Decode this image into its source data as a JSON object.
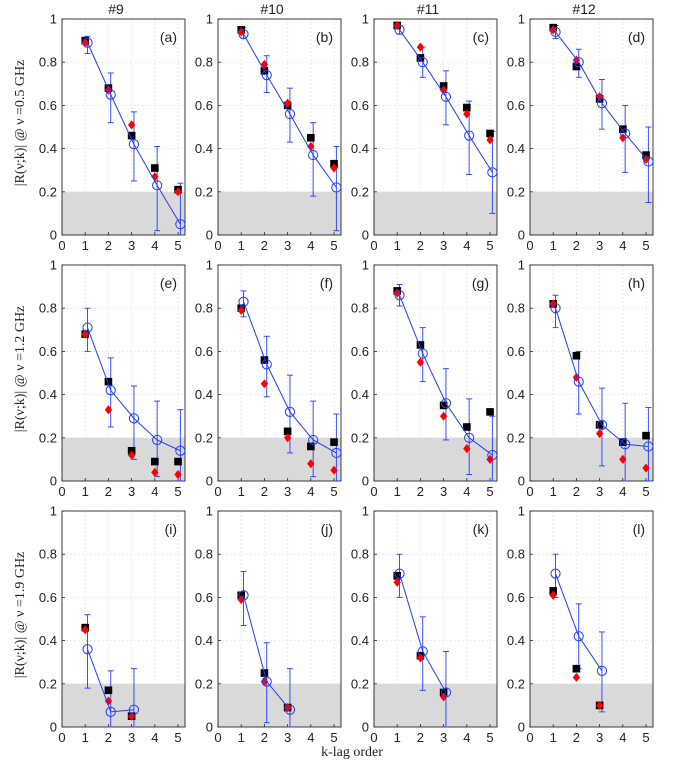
{
  "column_titles": [
    "#9",
    "#10",
    "#11",
    "#12"
  ],
  "row_ylabels": [
    "|R(ν;k)| @ ν =0.5 GHz",
    "|R(ν;k)| @ ν =1.2 GHz",
    "|R(ν;k)| @ ν =1.9 GHz"
  ],
  "xlabel": "k-lag order",
  "x_ticks": [
    "0",
    "1",
    "2",
    "3",
    "4",
    "5"
  ],
  "y_ticks": [
    "0",
    "0.2",
    "0.4",
    "0.6",
    "0.8",
    "1"
  ],
  "colors": {
    "black_squares": "#000000",
    "red_diamonds": "#ff0000",
    "blue_circles_line": "#1f3cff",
    "shaded_band": "#d9d9d9"
  },
  "chart_data": [
    {
      "type": "scatter",
      "panel_label": "(a)",
      "column": "#9",
      "xlim": [
        0,
        5.3
      ],
      "ylim": [
        0,
        1
      ],
      "grid": true,
      "shaded_band": [
        0,
        0.2
      ],
      "series": [
        {
          "marker": "square",
          "color": "black",
          "x": [
            1,
            2,
            3,
            4,
            5
          ],
          "y": [
            0.9,
            0.68,
            0.46,
            0.31,
            0.21
          ]
        },
        {
          "marker": "diamond",
          "color": "red",
          "x": [
            1,
            2,
            3,
            4,
            5
          ],
          "y": [
            0.89,
            0.67,
            0.51,
            0.27,
            0.2
          ]
        },
        {
          "marker": "open-circle-line",
          "color": "blue",
          "x": [
            1.1,
            2.1,
            3.1,
            4.1,
            5.1
          ],
          "y": [
            0.89,
            0.65,
            0.42,
            0.23,
            0.05
          ],
          "err_low": [
            0.84,
            0.52,
            0.25,
            0.02,
            0
          ],
          "err_high": [
            0.92,
            0.75,
            0.57,
            0.41,
            0.24
          ]
        }
      ]
    },
    {
      "type": "scatter",
      "panel_label": "(b)",
      "column": "#10",
      "xlim": [
        0,
        5.3
      ],
      "ylim": [
        0,
        1
      ],
      "grid": true,
      "shaded_band": [
        0,
        0.2
      ],
      "series": [
        {
          "marker": "square",
          "color": "black",
          "x": [
            1,
            2,
            3,
            4,
            5
          ],
          "y": [
            0.95,
            0.76,
            0.6,
            0.45,
            0.33
          ]
        },
        {
          "marker": "diamond",
          "color": "red",
          "x": [
            1,
            2,
            3,
            4,
            5
          ],
          "y": [
            0.94,
            0.79,
            0.61,
            0.41,
            0.31
          ]
        },
        {
          "marker": "open-circle-line",
          "color": "blue",
          "x": [
            1.1,
            2.1,
            3.1,
            4.1,
            5.1
          ],
          "y": [
            0.93,
            0.74,
            0.56,
            0.37,
            0.22
          ],
          "err_low": [
            0.91,
            0.66,
            0.43,
            0.18,
            0.02
          ],
          "err_high": [
            0.96,
            0.83,
            0.68,
            0.52,
            0.41
          ]
        }
      ]
    },
    {
      "type": "scatter",
      "panel_label": "(c)",
      "column": "#11",
      "xlim": [
        0,
        5.3
      ],
      "ylim": [
        0,
        1
      ],
      "grid": true,
      "shaded_band": [
        0,
        0.2
      ],
      "series": [
        {
          "marker": "square",
          "color": "black",
          "x": [
            1,
            2,
            3,
            4,
            5
          ],
          "y": [
            0.97,
            0.82,
            0.69,
            0.59,
            0.47
          ]
        },
        {
          "marker": "diamond",
          "color": "red",
          "x": [
            1,
            2,
            3,
            4,
            5
          ],
          "y": [
            0.97,
            0.87,
            0.67,
            0.56,
            0.44
          ]
        },
        {
          "marker": "open-circle-line",
          "color": "blue",
          "x": [
            1.1,
            2.1,
            3.1,
            4.1,
            5.1
          ],
          "y": [
            0.95,
            0.8,
            0.64,
            0.46,
            0.29
          ],
          "err_low": [
            0.93,
            0.73,
            0.51,
            0.28,
            0.1
          ],
          "err_high": [
            0.97,
            0.87,
            0.76,
            0.62,
            0.48
          ]
        }
      ]
    },
    {
      "type": "scatter",
      "panel_label": "(d)",
      "column": "#12",
      "xlim": [
        0,
        5.3
      ],
      "ylim": [
        0,
        1
      ],
      "grid": true,
      "shaded_band": [
        0,
        0.2
      ],
      "series": [
        {
          "marker": "square",
          "color": "black",
          "x": [
            1,
            2,
            3,
            4,
            5
          ],
          "y": [
            0.96,
            0.78,
            0.63,
            0.49,
            0.37
          ]
        },
        {
          "marker": "diamond",
          "color": "red",
          "x": [
            1,
            2,
            3,
            4,
            5
          ],
          "y": [
            0.95,
            0.81,
            0.64,
            0.45,
            0.35
          ]
        },
        {
          "marker": "open-circle-line",
          "color": "blue",
          "x": [
            1.1,
            2.1,
            3.1,
            4.1,
            5.1
          ],
          "y": [
            0.94,
            0.8,
            0.61,
            0.47,
            0.34
          ],
          "err_low": [
            0.91,
            0.73,
            0.49,
            0.29,
            0.15
          ],
          "err_high": [
            0.97,
            0.86,
            0.72,
            0.6,
            0.5
          ]
        }
      ]
    },
    {
      "type": "scatter",
      "panel_label": "(e)",
      "column": "#9",
      "xlim": [
        0,
        5.3
      ],
      "ylim": [
        0,
        1
      ],
      "grid": true,
      "shaded_band": [
        0,
        0.2
      ],
      "series": [
        {
          "marker": "square",
          "color": "black",
          "x": [
            1,
            2,
            3,
            4,
            5
          ],
          "y": [
            0.68,
            0.46,
            0.14,
            0.09,
            0.09
          ]
        },
        {
          "marker": "diamond",
          "color": "red",
          "x": [
            1,
            2,
            3,
            4,
            5
          ],
          "y": [
            0.68,
            0.33,
            0.12,
            0.04,
            0.03
          ]
        },
        {
          "marker": "open-circle-line",
          "color": "blue",
          "x": [
            1.1,
            2.1,
            3.1,
            4.1,
            5.1
          ],
          "y": [
            0.71,
            0.42,
            0.29,
            0.19,
            0.14
          ],
          "err_low": [
            0.6,
            0.25,
            0.1,
            0.02,
            0
          ],
          "err_high": [
            0.8,
            0.57,
            0.44,
            0.37,
            0.33
          ]
        }
      ]
    },
    {
      "type": "scatter",
      "panel_label": "(f)",
      "column": "#10",
      "xlim": [
        0,
        5.3
      ],
      "ylim": [
        0,
        1
      ],
      "grid": true,
      "shaded_band": [
        0,
        0.2
      ],
      "series": [
        {
          "marker": "square",
          "color": "black",
          "x": [
            1,
            2,
            3,
            4,
            5
          ],
          "y": [
            0.8,
            0.56,
            0.23,
            0.16,
            0.18
          ]
        },
        {
          "marker": "diamond",
          "color": "red",
          "x": [
            1,
            2,
            3,
            4,
            5
          ],
          "y": [
            0.79,
            0.45,
            0.2,
            0.08,
            0.05
          ]
        },
        {
          "marker": "open-circle-line",
          "color": "blue",
          "x": [
            1.1,
            2.1,
            3.1,
            4.1,
            5.1
          ],
          "y": [
            0.83,
            0.54,
            0.32,
            0.19,
            0.13
          ],
          "err_low": [
            0.76,
            0.39,
            0.13,
            0.02,
            0
          ],
          "err_high": [
            0.88,
            0.67,
            0.49,
            0.37,
            0.31
          ]
        }
      ]
    },
    {
      "type": "scatter",
      "panel_label": "(g)",
      "column": "#11",
      "xlim": [
        0,
        5.3
      ],
      "ylim": [
        0,
        1
      ],
      "grid": true,
      "shaded_band": [
        0,
        0.2
      ],
      "series": [
        {
          "marker": "square",
          "color": "black",
          "x": [
            1,
            2,
            3,
            4,
            5
          ],
          "y": [
            0.88,
            0.63,
            0.35,
            0.25,
            0.32
          ]
        },
        {
          "marker": "diamond",
          "color": "red",
          "x": [
            1,
            2,
            3,
            4,
            5
          ],
          "y": [
            0.87,
            0.55,
            0.3,
            0.15,
            0.1
          ]
        },
        {
          "marker": "open-circle-line",
          "color": "blue",
          "x": [
            1.1,
            2.1,
            3.1,
            4.1,
            5.1
          ],
          "y": [
            0.86,
            0.59,
            0.36,
            0.2,
            0.12
          ],
          "err_low": [
            0.81,
            0.46,
            0.19,
            0.03,
            0
          ],
          "err_high": [
            0.91,
            0.71,
            0.52,
            0.38,
            0.3
          ]
        }
      ]
    },
    {
      "type": "scatter",
      "panel_label": "(h)",
      "column": "#12",
      "xlim": [
        0,
        5.3
      ],
      "ylim": [
        0,
        1
      ],
      "grid": true,
      "shaded_band": [
        0,
        0.2
      ],
      "series": [
        {
          "marker": "square",
          "color": "black",
          "x": [
            1,
            2,
            3,
            4,
            5
          ],
          "y": [
            0.82,
            0.58,
            0.26,
            0.18,
            0.21
          ]
        },
        {
          "marker": "diamond",
          "color": "red",
          "x": [
            1,
            2,
            3,
            4,
            5
          ],
          "y": [
            0.82,
            0.48,
            0.22,
            0.1,
            0.06
          ]
        },
        {
          "marker": "open-circle-line",
          "color": "blue",
          "x": [
            1.1,
            2.1,
            3.1,
            4.1,
            5.1
          ],
          "y": [
            0.8,
            0.46,
            0.26,
            0.17,
            0.16
          ],
          "err_low": [
            0.71,
            0.31,
            0.07,
            0,
            0
          ],
          "err_high": [
            0.86,
            0.6,
            0.43,
            0.36,
            0.34
          ]
        }
      ]
    },
    {
      "type": "scatter",
      "panel_label": "(i)",
      "column": "#9",
      "xlim": [
        0,
        5.3
      ],
      "ylim": [
        0,
        1
      ],
      "grid": true,
      "shaded_band": [
        0,
        0.2
      ],
      "series": [
        {
          "marker": "square",
          "color": "black",
          "x": [
            1,
            2,
            3
          ],
          "y": [
            0.46,
            0.17,
            0.05
          ]
        },
        {
          "marker": "diamond",
          "color": "red",
          "x": [
            1,
            2,
            3
          ],
          "y": [
            0.45,
            0.12,
            0.05
          ]
        },
        {
          "marker": "open-circle-line",
          "color": "blue",
          "x": [
            1.1,
            2.1,
            3.1
          ],
          "y": [
            0.36,
            0.07,
            0.08
          ],
          "err_low": [
            0.18,
            0,
            0
          ],
          "err_high": [
            0.52,
            0.26,
            0.27
          ]
        }
      ]
    },
    {
      "type": "scatter",
      "panel_label": "(j)",
      "column": "#10",
      "xlim": [
        0,
        5.3
      ],
      "ylim": [
        0,
        1
      ],
      "grid": true,
      "shaded_band": [
        0,
        0.2
      ],
      "series": [
        {
          "marker": "square",
          "color": "black",
          "x": [
            1,
            2,
            3
          ],
          "y": [
            0.61,
            0.25,
            0.09
          ]
        },
        {
          "marker": "diamond",
          "color": "red",
          "x": [
            1,
            2,
            3
          ],
          "y": [
            0.59,
            0.21,
            0.09
          ]
        },
        {
          "marker": "open-circle-line",
          "color": "blue",
          "x": [
            1.1,
            2.1,
            3.1
          ],
          "y": [
            0.61,
            0.21,
            0.08
          ],
          "err_low": [
            0.47,
            0.02,
            0
          ],
          "err_high": [
            0.72,
            0.39,
            0.27
          ]
        }
      ]
    },
    {
      "type": "scatter",
      "panel_label": "(k)",
      "column": "#11",
      "xlim": [
        0,
        5.3
      ],
      "ylim": [
        0,
        1
      ],
      "grid": true,
      "shaded_band": [
        0,
        0.2
      ],
      "series": [
        {
          "marker": "square",
          "color": "black",
          "x": [
            1,
            2,
            3
          ],
          "y": [
            0.7,
            0.33,
            0.16
          ]
        },
        {
          "marker": "diamond",
          "color": "red",
          "x": [
            1,
            2,
            3
          ],
          "y": [
            0.67,
            0.32,
            0.14
          ]
        },
        {
          "marker": "open-circle-line",
          "color": "blue",
          "x": [
            1.1,
            2.1,
            3.1
          ],
          "y": [
            0.71,
            0.35,
            0.16
          ],
          "err_low": [
            0.6,
            0.17,
            0
          ],
          "err_high": [
            0.8,
            0.51,
            0.35
          ]
        }
      ]
    },
    {
      "type": "scatter",
      "panel_label": "(l)",
      "column": "#12",
      "xlim": [
        0,
        5.3
      ],
      "ylim": [
        0,
        1
      ],
      "grid": true,
      "shaded_band": [
        0,
        0.2
      ],
      "series": [
        {
          "marker": "square",
          "color": "black",
          "x": [
            1,
            2,
            3
          ],
          "y": [
            0.63,
            0.27,
            0.1
          ]
        },
        {
          "marker": "diamond",
          "color": "red",
          "x": [
            1,
            2,
            3
          ],
          "y": [
            0.61,
            0.23,
            0.1
          ]
        },
        {
          "marker": "open-circle-line",
          "color": "blue",
          "x": [
            1.1,
            2.1,
            3.1
          ],
          "y": [
            0.71,
            0.42,
            0.26
          ],
          "err_low": [
            0.6,
            0.27,
            0.07
          ],
          "err_high": [
            0.8,
            0.57,
            0.44
          ]
        }
      ]
    }
  ]
}
